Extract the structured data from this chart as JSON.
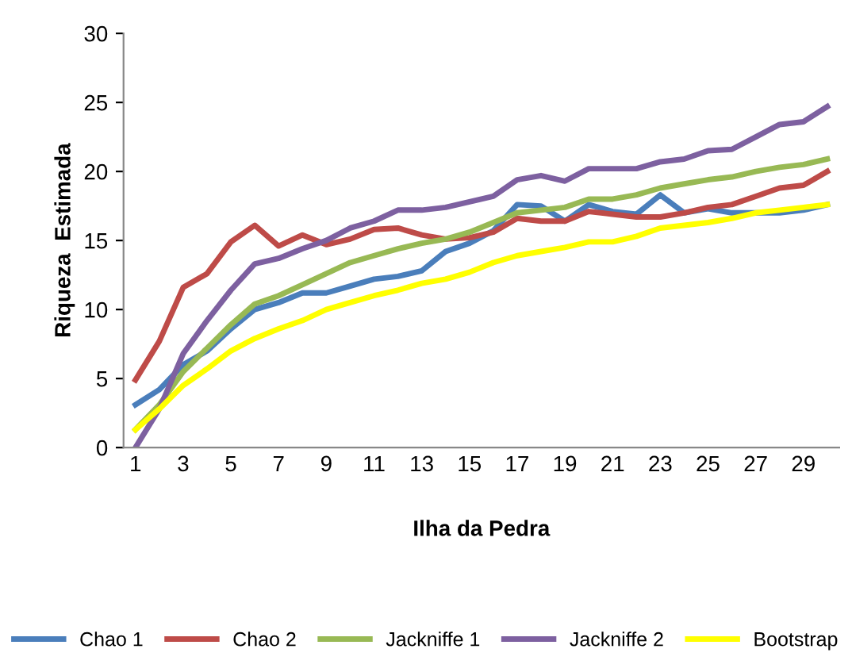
{
  "chart_data": {
    "type": "line",
    "xlabel": "Ilha da Pedra",
    "ylabel": "Riqueza  Estimada",
    "categories": [
      "1",
      null,
      "3",
      null,
      "5",
      null,
      "7",
      null,
      "9",
      null,
      "11",
      null,
      "13",
      null,
      "15",
      null,
      "17",
      null,
      "19",
      null,
      "21",
      null,
      "23",
      null,
      "25",
      null,
      "27",
      null,
      "29",
      null
    ],
    "ylim": [
      0,
      30
    ],
    "yticks": [
      0,
      5,
      10,
      15,
      20,
      25,
      30
    ],
    "grid": false,
    "legend": "bottom",
    "marker": "none",
    "line_style": "solid",
    "series": [
      {
        "name": "Chao 1",
        "color": "#4a7ebb",
        "values": [
          3.1,
          4.2,
          6.0,
          7.0,
          8.6,
          10.0,
          10.5,
          11.2,
          11.2,
          11.7,
          12.2,
          12.4,
          12.8,
          14.2,
          14.8,
          15.7,
          17.6,
          17.5,
          16.4,
          17.6,
          17.1,
          16.9,
          18.3,
          17.0,
          17.3,
          17.0,
          17.0,
          17.0,
          17.2,
          17.6
        ]
      },
      {
        "name": "Chao 2",
        "color": "#be4b48",
        "values": [
          4.9,
          7.7,
          11.6,
          12.6,
          14.9,
          16.1,
          14.6,
          15.4,
          14.7,
          15.1,
          15.8,
          15.9,
          15.4,
          15.1,
          15.2,
          15.6,
          16.6,
          16.4,
          16.4,
          17.1,
          16.9,
          16.7,
          16.7,
          17.0,
          17.4,
          17.6,
          18.2,
          18.8,
          19.0,
          20.0
        ]
      },
      {
        "name": "Jackniffe 1",
        "color": "#98b954",
        "values": [
          1.3,
          3.1,
          5.5,
          7.2,
          8.9,
          10.4,
          11.0,
          11.8,
          12.6,
          13.4,
          13.9,
          14.4,
          14.8,
          15.1,
          15.6,
          16.3,
          17.0,
          17.2,
          17.4,
          18.0,
          18.0,
          18.3,
          18.8,
          19.1,
          19.4,
          19.6,
          20.0,
          20.3,
          20.5,
          20.9
        ]
      },
      {
        "name": "Jackniffe 2",
        "color": "#7d60a0",
        "values": [
          0,
          2.8,
          6.8,
          9.2,
          11.4,
          13.3,
          13.7,
          14.4,
          15.0,
          15.9,
          16.4,
          17.2,
          17.2,
          17.4,
          17.8,
          18.2,
          19.4,
          19.7,
          19.3,
          20.2,
          20.2,
          20.2,
          20.7,
          20.9,
          21.5,
          21.6,
          22.5,
          23.4,
          23.6,
          24.7
        ]
      },
      {
        "name": "Bootstrap",
        "color": "#ffff00",
        "values": [
          1.3,
          2.8,
          4.5,
          5.7,
          7.0,
          7.9,
          8.6,
          9.2,
          10.0,
          10.5,
          11.0,
          11.4,
          11.9,
          12.2,
          12.7,
          13.4,
          13.9,
          14.2,
          14.5,
          14.9,
          14.9,
          15.3,
          15.9,
          16.1,
          16.3,
          16.6,
          17.0,
          17.2,
          17.4,
          17.6
        ]
      }
    ]
  }
}
